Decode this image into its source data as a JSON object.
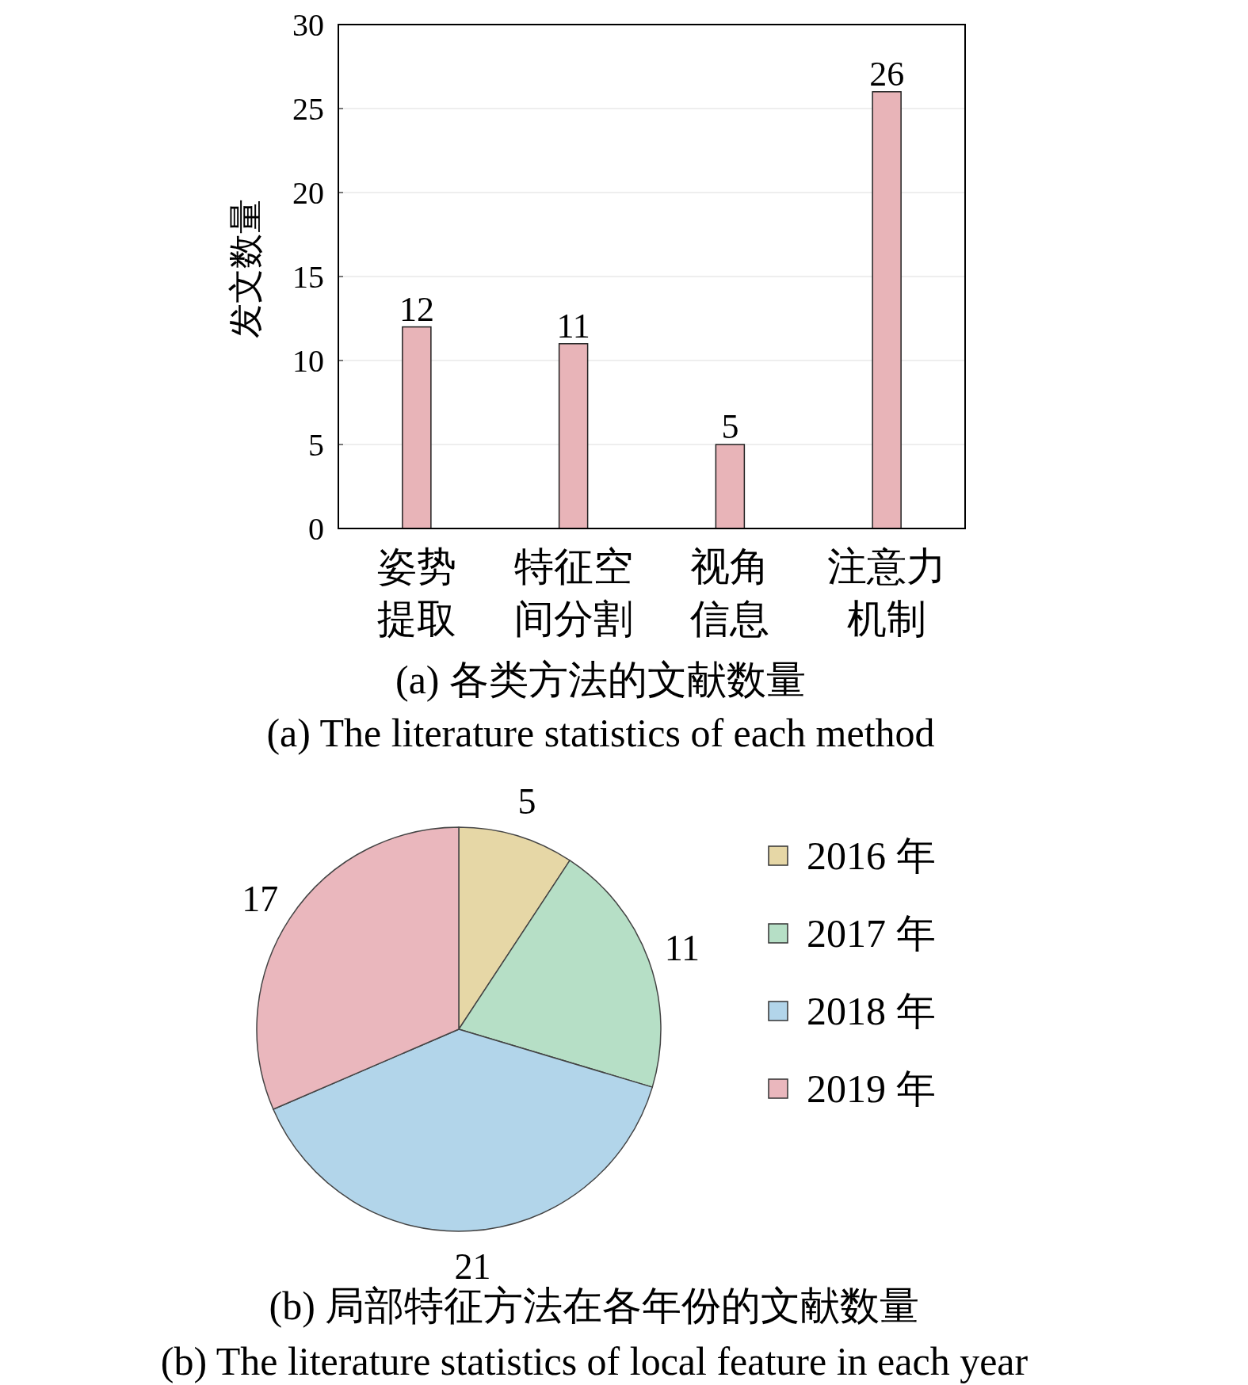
{
  "chart_data": [
    {
      "type": "bar",
      "title": "(a) 各类方法的文献数量",
      "subtitle": "(a) The literature statistics of each method",
      "ylabel": "发文数量",
      "categories": [
        "姿势提取",
        "特征空间分割",
        "视角信息",
        "注意力机制"
      ],
      "values": [
        12,
        11,
        5,
        26
      ],
      "color": "#e8b4b8",
      "ylim": [
        0,
        30
      ],
      "yticks": [
        0,
        5,
        10,
        15,
        20,
        25,
        30
      ],
      "grid": "y",
      "data_labels": true
    },
    {
      "type": "pie",
      "title": "(b) 局部特征方法在各年份的文献数量",
      "subtitle": "(b) The literature statistics of local feature in each year",
      "categories": [
        "2016 年",
        "2017 年",
        "2018 年",
        "2019 年"
      ],
      "values": [
        5,
        11,
        21,
        17
      ],
      "colors": [
        "#e6d7a6",
        "#b6dfc6",
        "#b2d5ea",
        "#eab7bd"
      ],
      "data_labels": true,
      "legend": "right"
    }
  ]
}
